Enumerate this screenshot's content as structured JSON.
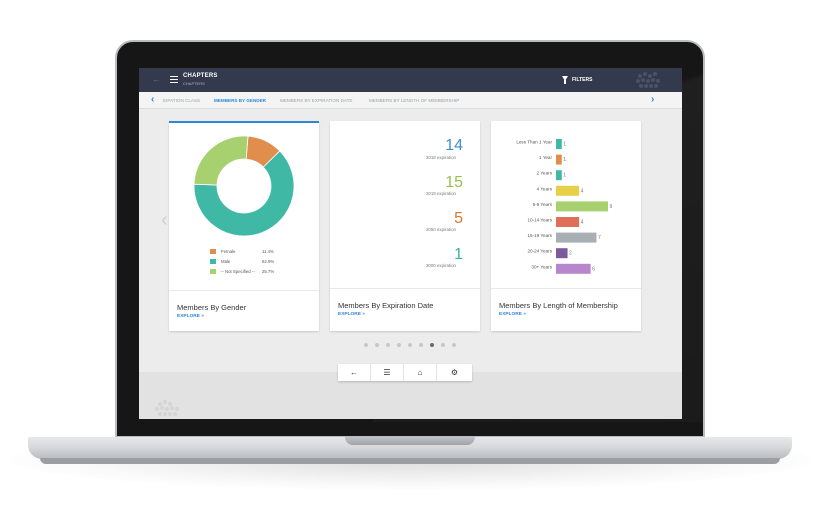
{
  "header": {
    "title": "CHAPTERS",
    "subtitle": "CHAPTERS",
    "filters_label": "FILTERS",
    "icons": [
      "back-arrow-icon",
      "hamburger-menu-icon",
      "filter-funnel-icon"
    ]
  },
  "tabs": [
    {
      "label": "EIPATION CLASS",
      "active": false
    },
    {
      "label": "MEMBERS BY GENDER",
      "active": true
    },
    {
      "label": "MEMBERS BY EXPIRATION DATE",
      "active": false
    },
    {
      "label": "MEMBERS BY LENGTH OF MEMBERSHIP",
      "active": false
    }
  ],
  "colors": {
    "accent": "#2d86d6",
    "topbar": "#343a4e",
    "female": "#e08e4e",
    "male": "#3fb9a5",
    "not_specified": "#a7d16e"
  },
  "cards": [
    {
      "title": "Members By Gender",
      "explore": "EXPLORE »",
      "legend": [
        {
          "label": "Female",
          "pct": "11.4%",
          "color": "#e08e4e"
        },
        {
          "label": "Male",
          "pct": "62.9%",
          "color": "#3fb9a5"
        },
        {
          "label": "-- Not Specified --",
          "pct": "25.7%",
          "color": "#a7d16e"
        }
      ]
    },
    {
      "title": "Members By Expiration Date",
      "explore": "EXPLORE »",
      "items": [
        {
          "value": "14",
          "label": "2018 expiration",
          "color": "#3b8fd4"
        },
        {
          "value": "15",
          "label": "2019 expiration",
          "color": "#9bc14a"
        },
        {
          "value": "5",
          "label": "2050 expiration",
          "color": "#d9762e"
        },
        {
          "value": "1",
          "label": "3000 expiration",
          "color": "#35b39b"
        }
      ]
    },
    {
      "title": "Members By Length of Membership",
      "explore": "EXPLORE »"
    }
  ],
  "chart_data": [
    {
      "type": "pie",
      "categories": [
        "Female",
        "Male",
        "-- Not Specified --"
      ],
      "values": [
        11.4,
        62.9,
        25.7
      ],
      "colors": [
        "#e08e4e",
        "#3fb9a5",
        "#a7d16e"
      ]
    },
    {
      "type": "bar",
      "orientation": "horizontal",
      "categories": [
        "Less Than 1 Year",
        "1 Year",
        "2 Years",
        "4 Years",
        "5-9 Years",
        "10-14 Years",
        "15-19 Years",
        "20-24 Years",
        "30+ Years"
      ],
      "values": [
        1,
        1,
        1,
        4,
        9,
        4,
        7,
        2,
        6
      ],
      "colors": [
        "#3fb9a5",
        "#e08e4e",
        "#3fb9a5",
        "#e8cf4a",
        "#a7d16e",
        "#e06f5a",
        "#a9b0b5",
        "#7c5a9c",
        "#b886cc"
      ],
      "xlim": [
        0,
        9
      ]
    }
  ],
  "pagination": {
    "count": 9,
    "active_index": 6
  },
  "bottom_nav": [
    {
      "icon": "back-arrow-icon",
      "glyph": "←"
    },
    {
      "icon": "list-menu-icon",
      "glyph": "☰"
    },
    {
      "icon": "home-icon",
      "glyph": "⌂"
    },
    {
      "icon": "settings-gear-icon",
      "glyph": "⚙"
    }
  ]
}
